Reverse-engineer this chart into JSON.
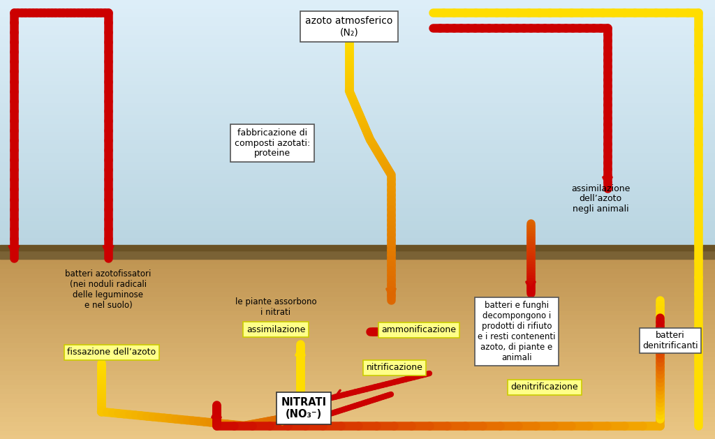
{
  "labels": {
    "atm_nitrogen": "azoto atmosferico\n(N₂)",
    "fab_composti": "fabbricazione di\ncomposti azotati:\nproteine",
    "assim_animali": "assimilazione\ndell’azoto\nneg⁢li animali",
    "batteri_azoto": "batteri azotofissatori\n(nei noduli radicali\ndelle leguminose\ne nel suolo)",
    "fissazione": "fissazione dell’azoto",
    "piante_assorbono": "le piante assorbono\ni nitrati",
    "assimilazione": "assimilazione",
    "ammonificazione": "ammonificazione",
    "nitrificazione": "nitrificazione",
    "nitrati": "NITRATI\n(NO₃⁻)",
    "batteri_funghi": "batteri e funghi\ndecompongono i\nprodotti di rifiuto\ne i resti contenenti\nazoto, di piante e\nanimali",
    "batteri_denitr": "batteri\ndenitrificanti",
    "denitrificazione": "denitrificazione"
  },
  "sky_top": "#ddeef8",
  "sky_bottom": "#b8d4e0",
  "ground_color": "#8a7248",
  "soil_top": "#c0975a",
  "soil_bottom": "#e8c888",
  "red": "#cc0000",
  "yellow": "#ffdd00",
  "orange": "#dd6600",
  "lw": 9
}
